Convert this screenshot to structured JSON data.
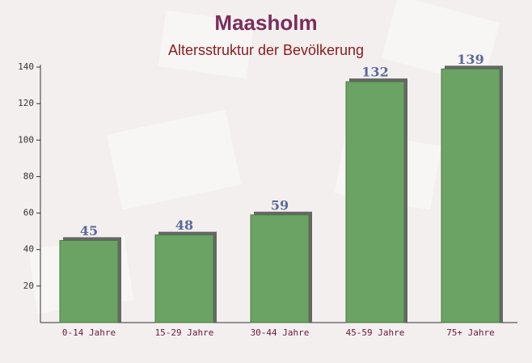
{
  "chart_data": {
    "type": "bar",
    "title": "Maasholm",
    "subtitle": "Altersstruktur der Bevölkerung",
    "categories": [
      "0-14 Jahre",
      "15-29 Jahre",
      "30-44 Jahre",
      "45-59 Jahre",
      "75+ Jahre"
    ],
    "values": [
      45,
      48,
      59,
      132,
      139
    ],
    "color": "#6aa363",
    "ylim": [
      0,
      140
    ],
    "yticks": [
      20,
      40,
      60,
      80,
      100,
      120,
      140
    ],
    "grid": false
  }
}
